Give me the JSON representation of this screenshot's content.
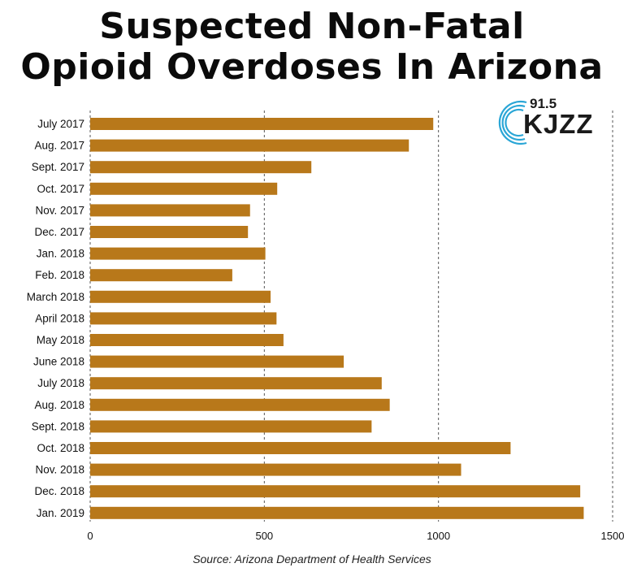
{
  "title": {
    "line1": "Suspected Non-Fatal",
    "line2": "Opioid Overdoses In Arizona"
  },
  "logo": {
    "frequency": "91.5",
    "name": "KJZZ",
    "arc_color": "#2aa6d6"
  },
  "source": "Source: Arizona Department of Health Services",
  "colors": {
    "bar": "#b8781a",
    "grid": "#555555",
    "text": "#111111"
  },
  "chart_data": {
    "type": "bar",
    "orientation": "horizontal",
    "title": "Suspected Non-Fatal Opioid Overdoses In Arizona",
    "xlabel": "",
    "ylabel": "",
    "xlim": [
      0,
      1500
    ],
    "xticks": [
      0,
      500,
      1000,
      1500
    ],
    "grid": "vertical dashed",
    "categories": [
      "July 2017",
      "Aug. 2017",
      "Sept. 2017",
      "Oct. 2017",
      "Nov. 2017",
      "Dec. 2017",
      "Jan. 2018",
      "Feb. 2018",
      "March 2018",
      "April 2018",
      "May 2018",
      "June 2018",
      "July 2018",
      "Aug. 2018",
      "Sept. 2018",
      "Oct. 2018",
      "Nov. 2018",
      "Dec. 2018",
      "Jan. 2019"
    ],
    "values": [
      985,
      915,
      635,
      537,
      459,
      453,
      503,
      408,
      518,
      535,
      555,
      728,
      837,
      860,
      808,
      1207,
      1065,
      1407,
      1417
    ]
  }
}
